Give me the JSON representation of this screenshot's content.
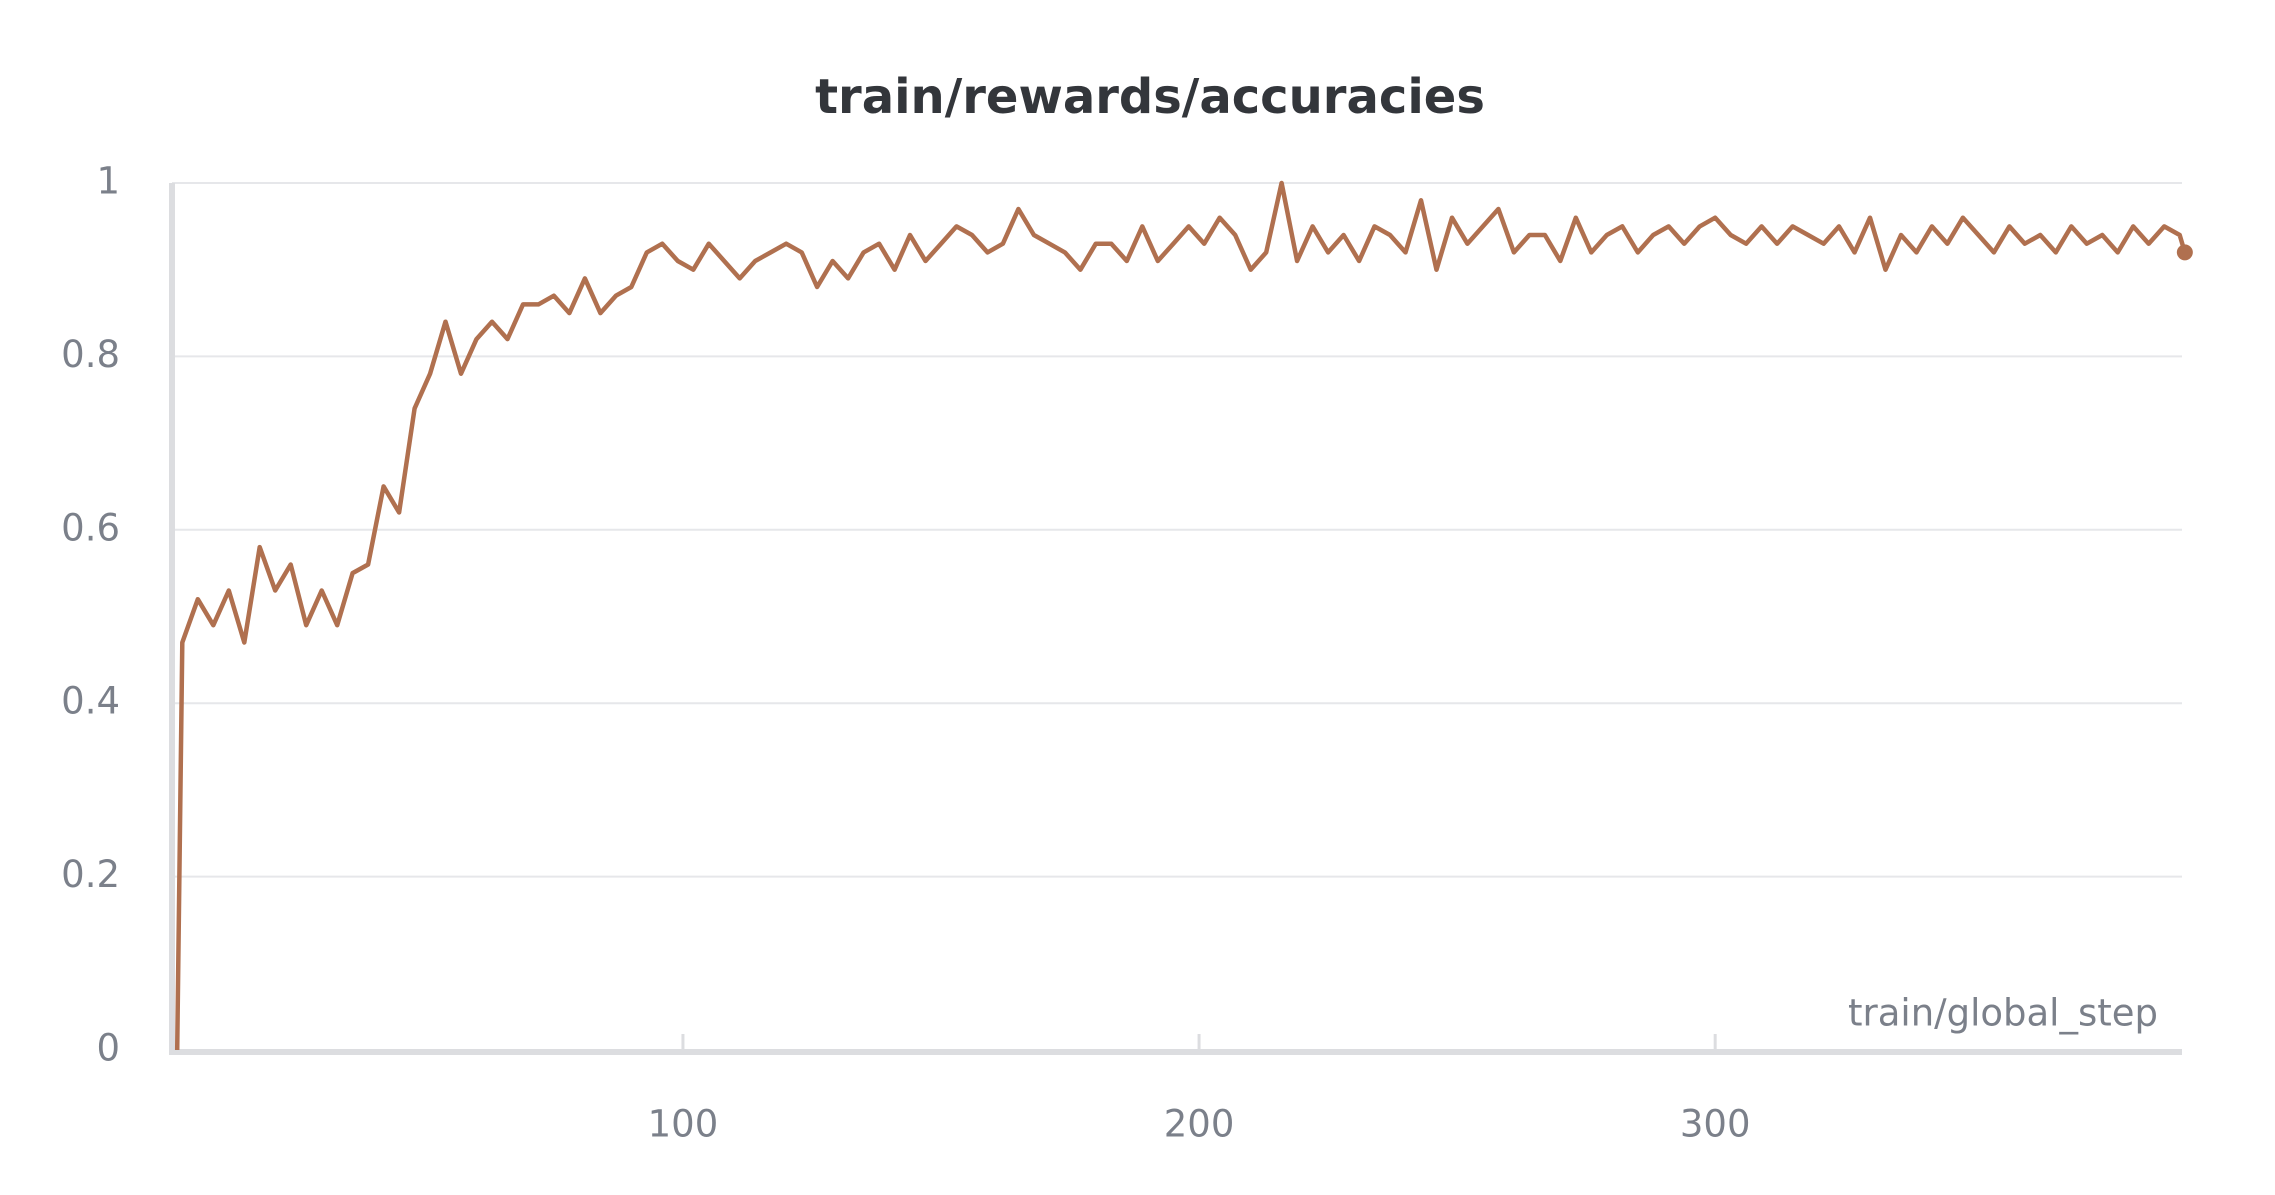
{
  "chart_data": {
    "type": "line",
    "title": "train/rewards/accuracies",
    "x_label": "train/global_step",
    "x": [
      2,
      3,
      6,
      9,
      12,
      15,
      18,
      21,
      24,
      27,
      30,
      33,
      36,
      39,
      42,
      45,
      48,
      51,
      54,
      57,
      60,
      63,
      66,
      69,
      72,
      75,
      78,
      81,
      84,
      87,
      90,
      93,
      96,
      99,
      102,
      105,
      108,
      111,
      114,
      117,
      120,
      123,
      126,
      129,
      132,
      135,
      138,
      141,
      144,
      147,
      150,
      153,
      156,
      159,
      162,
      165,
      168,
      171,
      174,
      177,
      180,
      183,
      186,
      189,
      192,
      195,
      198,
      201,
      204,
      207,
      210,
      213,
      216,
      219,
      222,
      225,
      228,
      231,
      234,
      237,
      240,
      243,
      246,
      249,
      252,
      255,
      258,
      261,
      264,
      267,
      270,
      273,
      276,
      279,
      282,
      285,
      288,
      291,
      294,
      297,
      300,
      303,
      306,
      309,
      312,
      315,
      318,
      321,
      324,
      327,
      330,
      333,
      336,
      339,
      342,
      345,
      348,
      351,
      354,
      357,
      360,
      363,
      366,
      369,
      372,
      375,
      378,
      381,
      384,
      387,
      390,
      391
    ],
    "series": [
      {
        "name": "train/rewards/accuracies",
        "color": "#b0704f",
        "values": [
          0,
          0.47,
          0.52,
          0.49,
          0.53,
          0.47,
          0.58,
          0.53,
          0.56,
          0.49,
          0.53,
          0.49,
          0.55,
          0.56,
          0.65,
          0.62,
          0.74,
          0.78,
          0.84,
          0.78,
          0.82,
          0.84,
          0.82,
          0.86,
          0.86,
          0.87,
          0.85,
          0.89,
          0.85,
          0.87,
          0.88,
          0.92,
          0.93,
          0.91,
          0.9,
          0.93,
          0.91,
          0.89,
          0.91,
          0.92,
          0.93,
          0.92,
          0.88,
          0.91,
          0.89,
          0.92,
          0.93,
          0.9,
          0.94,
          0.91,
          0.93,
          0.95,
          0.94,
          0.92,
          0.93,
          0.97,
          0.94,
          0.93,
          0.92,
          0.9,
          0.93,
          0.93,
          0.91,
          0.95,
          0.91,
          0.93,
          0.95,
          0.93,
          0.96,
          0.94,
          0.9,
          0.92,
          1,
          0.91,
          0.95,
          0.92,
          0.94,
          0.91,
          0.95,
          0.94,
          0.92,
          0.98,
          0.9,
          0.96,
          0.93,
          0.95,
          0.97,
          0.92,
          0.94,
          0.94,
          0.91,
          0.96,
          0.92,
          0.94,
          0.95,
          0.92,
          0.94,
          0.95,
          0.93,
          0.95,
          0.96,
          0.94,
          0.93,
          0.95,
          0.93,
          0.95,
          0.94,
          0.93,
          0.95,
          0.92,
          0.96,
          0.9,
          0.94,
          0.92,
          0.95,
          0.93,
          0.96,
          0.94,
          0.92,
          0.95,
          0.93,
          0.94,
          0.92,
          0.95,
          0.93,
          0.94,
          0.92,
          0.95,
          0.93,
          0.95,
          0.94,
          0.92
        ]
      }
    ],
    "xlim": [
      1,
      392
    ],
    "ylim": [
      0,
      1
    ],
    "xticks": [
      100,
      200,
      300
    ],
    "yticks": [
      0,
      0.2,
      0.4,
      0.6,
      0.8,
      1
    ],
    "grid": true
  }
}
